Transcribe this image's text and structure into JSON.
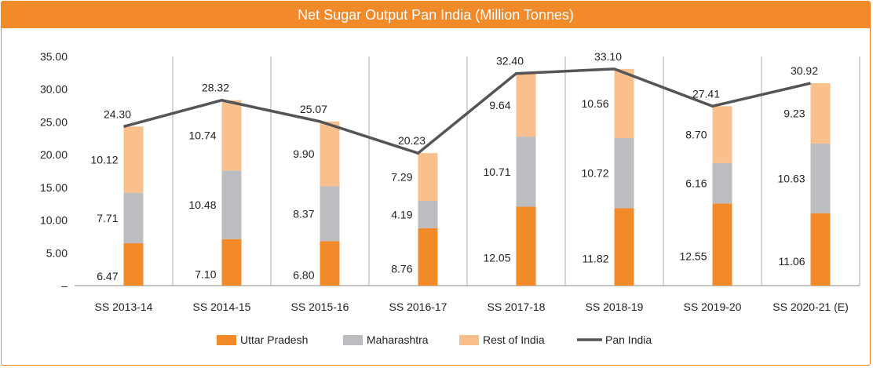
{
  "chart_data": {
    "type": "bar",
    "title": "Net Sugar Output Pan India (Million Tonnes)",
    "categories": [
      "SS 2013-14",
      "SS 2014-15",
      "SS 2015-16",
      "SS 2016-17",
      "SS 2017-18",
      "SS 2018-19",
      "SS 2019-20",
      "SS 2020-21 (E)"
    ],
    "series": [
      {
        "name": "Uttar Pradesh",
        "kind": "stacked-bar",
        "color": "#f28a2a",
        "values": [
          6.47,
          7.1,
          6.8,
          8.76,
          12.05,
          11.82,
          12.55,
          11.06
        ]
      },
      {
        "name": "Maharashtra",
        "kind": "stacked-bar",
        "color": "#bcbdc0",
        "values": [
          7.71,
          10.48,
          8.37,
          4.19,
          10.71,
          10.72,
          6.16,
          10.63
        ]
      },
      {
        "name": "Rest of India",
        "kind": "stacked-bar",
        "color": "#f9c08e",
        "values": [
          10.12,
          10.74,
          9.9,
          7.29,
          9.64,
          10.56,
          8.7,
          9.23
        ]
      },
      {
        "name": "Pan India",
        "kind": "line",
        "color": "#555559",
        "values": [
          24.3,
          28.32,
          25.07,
          20.23,
          32.4,
          33.1,
          27.41,
          30.92
        ]
      }
    ],
    "ylim": [
      0,
      35
    ],
    "yticks": [
      "–",
      "5.00",
      "10.00",
      "15.00",
      "20.00",
      "25.00",
      "30.00",
      "35.00"
    ],
    "legend_position": "bottom",
    "xlabel": "",
    "ylabel": ""
  }
}
